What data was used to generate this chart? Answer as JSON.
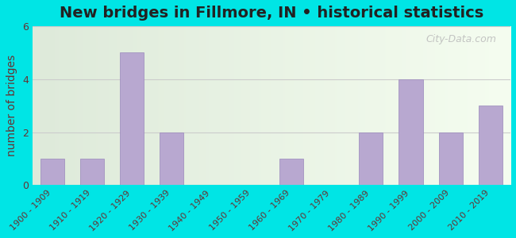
{
  "title": "New bridges in Fillmore, IN • historical statistics",
  "ylabel": "number of bridges",
  "categories": [
    "1900 - 1909",
    "1910 - 1919",
    "1920 - 1929",
    "1930 - 1939",
    "1940 - 1949",
    "1950 - 1959",
    "1960 - 1969",
    "1970 - 1979",
    "1980 - 1989",
    "1990 - 1999",
    "2000 - 2009",
    "2010 - 2019"
  ],
  "values": [
    1,
    1,
    5,
    2,
    0,
    0,
    1,
    0,
    2,
    4,
    2,
    3
  ],
  "bar_color": "#b8a8d0",
  "bar_edge_color": "#9988bb",
  "background_outer": "#00e5e5",
  "background_inner_top": "#deeada",
  "background_inner_bottom": "#f5fdf0",
  "grid_color": "#cccccc",
  "title_color": "#222222",
  "label_color": "#663333",
  "tick_color": "#663333",
  "watermark_text": "City-Data.com",
  "watermark_color": "#bbbbbb",
  "ylim": [
    0,
    6
  ],
  "yticks": [
    0,
    2,
    4,
    6
  ],
  "title_fontsize": 14,
  "ylabel_fontsize": 10,
  "tick_fontsize": 8
}
